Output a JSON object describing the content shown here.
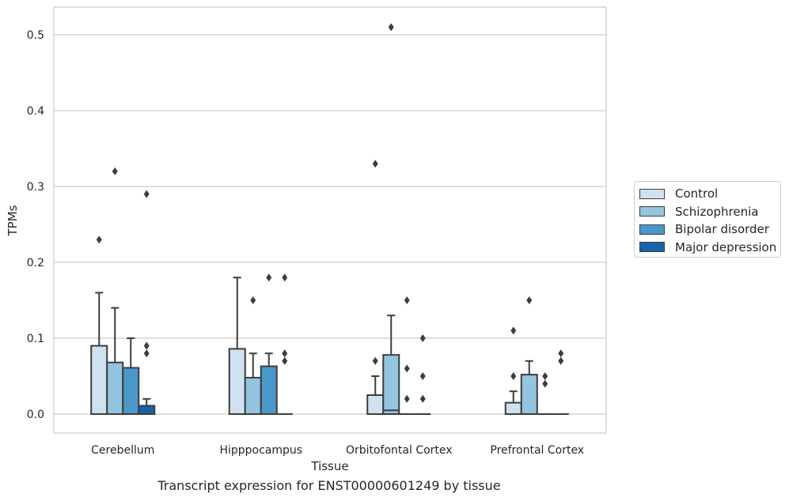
{
  "chart_data": {
    "type": "box",
    "title": "",
    "caption": "Transcript expression for ENST00000601249 by tissue",
    "xlabel": "Tissue",
    "ylabel": "TPMs",
    "ylim": [
      -0.025,
      0.537
    ],
    "yticks": [
      "0.0",
      "0.1",
      "0.2",
      "0.3",
      "0.4",
      "0.5"
    ],
    "ytick_values": [
      0,
      0.1,
      0.2,
      0.3,
      0.4,
      0.5
    ],
    "grid": "horizontal",
    "legend_position": "right",
    "categories": [
      "Cerebellum",
      "Hipppocampus",
      "Orbitofontal Cortex",
      "Prefrontal Cortex"
    ],
    "series": [
      {
        "name": "Control",
        "color": "#d0e1f2",
        "boxes": [
          {
            "q1": 0.0,
            "median": 0.0,
            "q3": 0.09,
            "whisker_low": 0.0,
            "whisker_high": 0.16,
            "outliers": [
              0.23
            ]
          },
          {
            "q1": 0.0,
            "median": 0.0,
            "q3": 0.086,
            "whisker_low": 0.0,
            "whisker_high": 0.18,
            "outliers": []
          },
          {
            "q1": 0.0,
            "median": 0.0,
            "q3": 0.025,
            "whisker_low": 0.0,
            "whisker_high": 0.05,
            "outliers": [
              0.07,
              0.33
            ]
          },
          {
            "q1": 0.0,
            "median": 0.0,
            "q3": 0.015,
            "whisker_low": 0.0,
            "whisker_high": 0.03,
            "outliers": [
              0.05,
              0.11
            ]
          }
        ]
      },
      {
        "name": "Schizophrenia",
        "color": "#94c4df",
        "boxes": [
          {
            "q1": 0.0,
            "median": 0.0,
            "q3": 0.068,
            "whisker_low": 0.0,
            "whisker_high": 0.14,
            "outliers": [
              0.32
            ]
          },
          {
            "q1": 0.0,
            "median": 0.0,
            "q3": 0.048,
            "whisker_low": 0.0,
            "whisker_high": 0.08,
            "outliers": [
              0.15
            ]
          },
          {
            "q1": 0.0,
            "median": 0.005,
            "q3": 0.078,
            "whisker_low": 0.0,
            "whisker_high": 0.13,
            "outliers": [
              0.51
            ]
          },
          {
            "q1": 0.0,
            "median": 0.0,
            "q3": 0.052,
            "whisker_low": 0.0,
            "whisker_high": 0.07,
            "outliers": [
              0.15
            ]
          }
        ]
      },
      {
        "name": "Bipolar disorder",
        "color": "#4a98c9",
        "boxes": [
          {
            "q1": 0.0,
            "median": 0.0,
            "q3": 0.061,
            "whisker_low": 0.0,
            "whisker_high": 0.1,
            "outliers": []
          },
          {
            "q1": 0.0,
            "median": 0.0,
            "q3": 0.063,
            "whisker_low": 0.0,
            "whisker_high": 0.08,
            "outliers": [
              0.18
            ]
          },
          {
            "q1": 0.0,
            "median": 0.0,
            "q3": 0.0,
            "whisker_low": 0.0,
            "whisker_high": 0.0,
            "outliers": [
              0.02,
              0.06,
              0.15
            ]
          },
          {
            "q1": 0.0,
            "median": 0.0,
            "q3": 0.0,
            "whisker_low": 0.0,
            "whisker_high": 0.0,
            "outliers": [
              0.04,
              0.05
            ]
          }
        ]
      },
      {
        "name": "Major depression",
        "color": "#1764ab",
        "boxes": [
          {
            "q1": 0.0,
            "median": 0.0,
            "q3": 0.011,
            "whisker_low": 0.0,
            "whisker_high": 0.02,
            "outliers": [
              0.08,
              0.09,
              0.29
            ]
          },
          {
            "q1": 0.0,
            "median": 0.0,
            "q3": 0.0,
            "whisker_low": 0.0,
            "whisker_high": 0.0,
            "outliers": [
              0.07,
              0.08,
              0.18
            ]
          },
          {
            "q1": 0.0,
            "median": 0.0,
            "q3": 0.0,
            "whisker_low": 0.0,
            "whisker_high": 0.0,
            "outliers": [
              0.02,
              0.05,
              0.1
            ]
          },
          {
            "q1": 0.0,
            "median": 0.0,
            "q3": 0.0,
            "whisker_low": 0.0,
            "whisker_high": 0.0,
            "outliers": [
              0.07,
              0.08
            ]
          }
        ]
      }
    ]
  }
}
